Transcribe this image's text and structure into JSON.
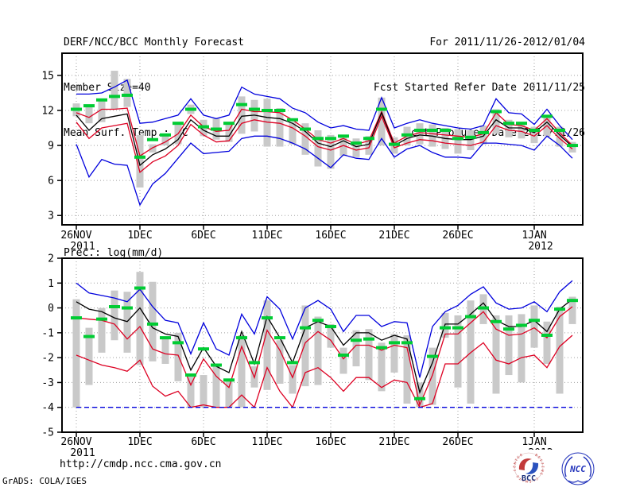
{
  "header": {
    "title": "DERF/NCC/BCC Monthly Forecast",
    "member_size": "Member Size=40",
    "for_range": "For 2011/11/26-2012/01/04",
    "refer_date": "Fcst Started Refer Date 2011/11/25",
    "produced_date": "Fcst Produced Date 2011/11/26"
  },
  "footer": {
    "url": "http://cmdp.ncc.cma.gov.cn",
    "grads_credit": "GrADS: COLA/IGES",
    "logos": [
      {
        "name": "bcc-logo",
        "label": "BCC",
        "ring_text": "BEIJING CLIMATE CENTER",
        "accent_red": "#c23a3a",
        "accent_blue": "#2a52be"
      },
      {
        "name": "ncc-logo",
        "label": "NCC",
        "accent_blue": "#2233bb"
      }
    ]
  },
  "colors": {
    "envelope_line": "#0000dd",
    "spread_line": "#dd0022",
    "mean_line": "#000000",
    "marker_green": "#00cc33",
    "bar_gray": "#c9c9c9",
    "grid_gray": "#a0a0a0",
    "axis_black": "#000000"
  },
  "chart_data": [
    {
      "type": "line",
      "title": "Mean Surf. Temp.: °C",
      "n_points": 40,
      "x_tick_labels": [
        "26NOV",
        "1DEC",
        "6DEC",
        "11DEC",
        "16DEC",
        "21DEC",
        "26DEC",
        "1JAN"
      ],
      "x_tick_positions": [
        0,
        5,
        10,
        15,
        20,
        25,
        30,
        36
      ],
      "x_year_labels": [
        {
          "text": "2011",
          "position": 0
        },
        {
          "text": "2012",
          "position": 36
        }
      ],
      "ylim": [
        2.2,
        16.9
      ],
      "yticks": [
        15,
        12,
        9,
        6,
        3
      ],
      "grid": "dotted",
      "legend": "none",
      "series": [
        {
          "name": "envelope-upper-line",
          "color": "#0000dd",
          "dashed": false,
          "values": [
            13.4,
            13.4,
            13.5,
            14.0,
            14.6,
            10.9,
            11.0,
            11.3,
            11.6,
            13.0,
            11.6,
            11.3,
            11.6,
            14.0,
            13.4,
            13.2,
            13.0,
            12.2,
            11.8,
            11.0,
            10.5,
            10.7,
            10.4,
            10.3,
            13.1,
            10.5,
            10.9,
            11.2,
            10.9,
            10.7,
            10.5,
            10.4,
            10.7,
            13.0,
            11.8,
            11.7,
            10.8,
            12.1,
            10.7,
            9.5
          ]
        },
        {
          "name": "spread-upper-line",
          "color": "#dd0022",
          "dashed": false,
          "values": [
            11.8,
            11.4,
            12.1,
            12.1,
            12.2,
            8.1,
            8.8,
            9.3,
            10.0,
            11.6,
            10.6,
            10.2,
            10.3,
            12.1,
            11.9,
            11.9,
            11.8,
            11.2,
            10.4,
            9.5,
            9.2,
            9.6,
            9.1,
            9.4,
            11.9,
            9.2,
            9.8,
            10.1,
            10.0,
            9.9,
            9.8,
            9.7,
            10.0,
            11.8,
            10.8,
            10.7,
            10.3,
            11.3,
            10.1,
            9.0
          ]
        },
        {
          "name": "ensemble-mean-line",
          "color": "#000000",
          "dashed": false,
          "values": [
            11.6,
            10.3,
            11.3,
            11.5,
            11.7,
            7.3,
            8.2,
            8.7,
            9.5,
            11.2,
            10.3,
            9.8,
            9.8,
            11.5,
            11.6,
            11.4,
            11.3,
            10.9,
            10.2,
            9.2,
            8.9,
            9.4,
            8.9,
            9.1,
            11.8,
            9.0,
            9.6,
            9.9,
            9.8,
            9.6,
            9.5,
            9.5,
            9.8,
            11.2,
            10.5,
            10.5,
            10.1,
            11.0,
            9.9,
            8.9
          ]
        },
        {
          "name": "spread-lower-line",
          "color": "#dd0022",
          "dashed": false,
          "values": [
            11.0,
            9.6,
            10.5,
            10.7,
            10.9,
            6.7,
            7.6,
            8.1,
            9.0,
            10.8,
            9.9,
            9.3,
            9.4,
            10.9,
            11.2,
            11.0,
            10.9,
            10.5,
            9.8,
            8.9,
            8.6,
            9.0,
            8.6,
            8.8,
            11.5,
            8.8,
            9.2,
            9.5,
            9.4,
            9.2,
            9.1,
            9.0,
            9.3,
            10.7,
            10.3,
            10.2,
            9.8,
            10.7,
            9.6,
            8.7
          ]
        },
        {
          "name": "envelope-lower-line",
          "color": "#0000dd",
          "dashed": false,
          "values": [
            9.1,
            6.3,
            7.8,
            7.4,
            7.3,
            3.9,
            5.7,
            6.6,
            7.9,
            9.2,
            8.3,
            8.4,
            8.5,
            9.6,
            9.8,
            9.8,
            9.6,
            9.2,
            8.7,
            7.9,
            7.1,
            8.2,
            7.9,
            7.8,
            9.6,
            8.0,
            8.7,
            9.0,
            8.4,
            8.0,
            8.0,
            7.9,
            9.2,
            9.2,
            9.1,
            9.0,
            8.6,
            9.8,
            9.0,
            7.9
          ]
        }
      ],
      "markers": {
        "name": "green-dash-markers",
        "color": "#00cc33",
        "values": [
          12.1,
          12.4,
          12.9,
          13.2,
          13.3,
          8.0,
          9.5,
          9.9,
          10.9,
          12.1,
          10.6,
          10.4,
          10.9,
          12.5,
          12.1,
          12.0,
          12.0,
          11.2,
          10.4,
          9.6,
          9.6,
          9.8,
          9.2,
          9.6,
          12.1,
          9.1,
          9.9,
          10.3,
          10.3,
          10.3,
          9.6,
          9.7,
          10.1,
          11.9,
          10.9,
          10.9,
          10.3,
          11.5,
          10.3,
          9.0
        ]
      },
      "bars": {
        "name": "ensemble-spread-bars",
        "color": "#c9c9c9",
        "upper": [
          12.6,
          12.5,
          13.0,
          15.4,
          14.7,
          9.9,
          9.1,
          9.8,
          10.8,
          12.5,
          11.2,
          11.3,
          11.0,
          13.2,
          12.9,
          13.0,
          12.2,
          11.0,
          10.9,
          10.3,
          9.9,
          9.8,
          9.6,
          9.8,
          13.1,
          9.7,
          10.6,
          10.9,
          10.8,
          10.5,
          10.4,
          10.3,
          10.7,
          12.1,
          11.2,
          11.0,
          10.6,
          11.6,
          10.6,
          9.3
        ],
        "lower": [
          11.5,
          10.9,
          11.0,
          12.1,
          12.3,
          5.4,
          8.4,
          9.0,
          9.1,
          11.7,
          9.8,
          9.5,
          9.3,
          10.0,
          10.2,
          8.9,
          8.9,
          9.1,
          8.2,
          7.2,
          7.0,
          8.1,
          8.0,
          8.2,
          9.0,
          8.3,
          9.0,
          9.1,
          8.9,
          8.7,
          8.3,
          8.6,
          9.1,
          10.0,
          9.7,
          9.6,
          9.2,
          9.8,
          8.9,
          8.4
        ]
      }
    },
    {
      "type": "line",
      "title": "Prec.: log(mm/d)",
      "n_points": 40,
      "x_tick_labels": [
        "26NOV",
        "1DEC",
        "6DEC",
        "11DEC",
        "16DEC",
        "21DEC",
        "26DEC",
        "1JAN"
      ],
      "x_tick_positions": [
        0,
        5,
        10,
        15,
        20,
        25,
        30,
        36
      ],
      "x_year_labels": [
        {
          "text": "2011",
          "position": 0
        },
        {
          "text": "2012",
          "position": 36
        }
      ],
      "ylim": [
        -5,
        2
      ],
      "yticks": [
        2,
        1,
        0,
        -1,
        -2,
        -3,
        -4,
        -5
      ],
      "grid": "dotted",
      "legend": "none",
      "series": [
        {
          "name": "envelope-upper-line",
          "color": "#0000dd",
          "dashed": false,
          "values": [
            1.0,
            0.6,
            0.5,
            0.4,
            0.25,
            0.75,
            0.05,
            -0.5,
            -0.6,
            -1.85,
            -0.6,
            -1.65,
            -1.9,
            -0.25,
            -1.05,
            0.45,
            -0.05,
            -1.25,
            0.0,
            0.3,
            -0.05,
            -0.95,
            -0.3,
            -0.3,
            -0.75,
            -0.55,
            -0.6,
            -2.8,
            -0.75,
            -0.15,
            0.1,
            0.55,
            0.85,
            0.2,
            -0.05,
            0.0,
            0.25,
            -0.15,
            0.65,
            1.1
          ]
        },
        {
          "name": "spread-upper-line",
          "color": "#dd0022",
          "dashed": false,
          "values": [
            -0.4,
            -0.45,
            -0.5,
            -0.65,
            -1.25,
            -0.75,
            -1.65,
            -1.85,
            -1.9,
            -3.1,
            -2.05,
            -2.75,
            -3.2,
            -1.55,
            -2.8,
            -0.9,
            -1.7,
            -2.8,
            -1.4,
            -0.95,
            -1.3,
            -2.05,
            -1.5,
            -1.5,
            -1.7,
            -1.5,
            -1.6,
            -3.9,
            -2.7,
            -1.05,
            -1.05,
            -0.6,
            -0.15,
            -0.85,
            -1.1,
            -1.05,
            -0.8,
            -1.2,
            -0.35,
            0.05
          ]
        },
        {
          "name": "ensemble-mean-line",
          "color": "#000000",
          "dashed": false,
          "values": [
            0.25,
            -0.05,
            -0.15,
            -0.4,
            -0.55,
            0.0,
            -0.8,
            -1.05,
            -1.15,
            -2.5,
            -1.6,
            -2.35,
            -2.6,
            -0.95,
            -2.25,
            -0.35,
            -1.2,
            -2.2,
            -0.8,
            -0.55,
            -0.75,
            -1.5,
            -1.0,
            -1.0,
            -1.3,
            -1.1,
            -1.25,
            -3.4,
            -2.2,
            -0.65,
            -0.65,
            -0.25,
            0.2,
            -0.5,
            -0.75,
            -0.75,
            -0.5,
            -0.95,
            -0.05,
            0.35
          ]
        },
        {
          "name": "spread-lower-line",
          "color": "#dd0022",
          "dashed": false,
          "values": [
            -1.9,
            -2.1,
            -2.3,
            -2.4,
            -2.55,
            -2.1,
            -3.15,
            -3.55,
            -3.35,
            -4.0,
            -3.9,
            -4.0,
            -4.0,
            -3.5,
            -4.0,
            -2.4,
            -3.35,
            -4.0,
            -2.6,
            -2.4,
            -2.8,
            -3.35,
            -2.8,
            -2.8,
            -3.2,
            -2.9,
            -3.0,
            -4.0,
            -3.85,
            -2.25,
            -2.25,
            -1.8,
            -1.4,
            -2.1,
            -2.25,
            -2.0,
            -1.9,
            -2.4,
            -1.55,
            -1.1
          ]
        },
        {
          "name": "envelope-lower-line",
          "color": "#0000dd",
          "dashed": true,
          "values": [
            -4,
            -4,
            -4,
            -4,
            -4,
            -4,
            -4,
            -4,
            -4,
            -4,
            -4,
            -4,
            -4,
            -4,
            -4,
            -4,
            -4,
            -4,
            -4,
            -4,
            -4,
            -4,
            -4,
            -4,
            -4,
            -4,
            -4,
            -4,
            -4,
            -4,
            -4,
            -4,
            -4,
            -4,
            -4,
            -4,
            -4,
            -4,
            -4,
            -4
          ]
        }
      ],
      "markers": {
        "name": "green-dash-markers",
        "color": "#00cc33",
        "values": [
          -0.4,
          -1.15,
          -0.45,
          0.05,
          0.0,
          0.8,
          -0.65,
          -1.2,
          -1.4,
          -2.7,
          -1.65,
          -2.3,
          -2.9,
          -1.2,
          -2.2,
          -0.4,
          -1.2,
          -2.2,
          -0.8,
          -0.5,
          -0.75,
          -1.9,
          -1.3,
          -1.25,
          -1.6,
          -1.4,
          -1.4,
          -3.65,
          -1.95,
          -0.8,
          -0.8,
          -0.35,
          0.0,
          -0.55,
          -0.85,
          -0.7,
          -0.5,
          -1.1,
          -0.05,
          0.3
        ]
      },
      "bars": {
        "name": "ensemble-spread-bars",
        "color": "#c9c9c9",
        "upper": [
          0.35,
          -0.8,
          0.0,
          0.7,
          0.65,
          1.45,
          1.05,
          -1.2,
          -1.0,
          -2.7,
          -2.7,
          -2.3,
          -2.85,
          -1.1,
          -2.35,
          0.3,
          -1.3,
          -2.3,
          0.1,
          -0.35,
          -0.65,
          -1.6,
          -0.9,
          -0.85,
          -1.4,
          -1.05,
          -1.1,
          -3.0,
          -1.6,
          -0.2,
          -0.3,
          0.3,
          0.55,
          -0.3,
          -0.3,
          -0.25,
          0.1,
          -0.55,
          0.05,
          0.45
        ],
        "lower": [
          -4.0,
          -3.1,
          -1.8,
          -1.3,
          -1.8,
          -2.3,
          -2.15,
          -2.25,
          -2.95,
          -4.0,
          -4.0,
          -4.0,
          -4.0,
          -4.0,
          -3.2,
          -3.3,
          -3.05,
          -3.45,
          -3.15,
          -3.1,
          -1.6,
          -2.65,
          -2.35,
          -2.9,
          -3.35,
          -2.6,
          -3.85,
          -4.0,
          -3.9,
          -1.2,
          -3.2,
          -3.85,
          -0.65,
          -3.45,
          -2.7,
          -3.0,
          -1.6,
          -2.25,
          -3.45,
          -0.65
        ]
      }
    }
  ]
}
